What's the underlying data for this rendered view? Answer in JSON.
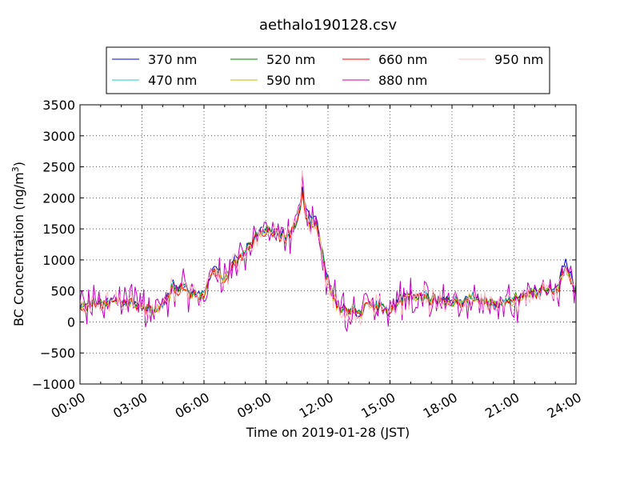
{
  "chart_data": {
    "type": "line",
    "title": "aethalo190128.csv",
    "xlabel": "Time on 2019-01-28 (JST)",
    "ylabel_main": "BC Concentration (ng/m",
    "ylabel_sup": "3",
    "ylabel_tail": ")",
    "xlim": [
      0,
      24
    ],
    "ylim": [
      -1000,
      3500
    ],
    "x_ticks": [
      0,
      3,
      6,
      9,
      12,
      15,
      18,
      21,
      24
    ],
    "x_tick_labels": [
      "00:00",
      "03:00",
      "06:00",
      "09:00",
      "12:00",
      "15:00",
      "18:00",
      "21:00",
      "24:00"
    ],
    "y_ticks": [
      -1000,
      -500,
      0,
      500,
      1000,
      1500,
      2000,
      2500,
      3000,
      3500
    ],
    "y_tick_labels": [
      "−1000",
      "−500",
      "0",
      "500",
      "1000",
      "1500",
      "2000",
      "2500",
      "3000",
      "3500"
    ],
    "grid": true,
    "legend_position": "top-center",
    "legend_columns": 4,
    "anchor_x": [
      0,
      0.5,
      1,
      1.5,
      2,
      2.5,
      3,
      3.5,
      4,
      4.5,
      5,
      5.5,
      6,
      6.5,
      7,
      7.5,
      8,
      8.5,
      9,
      9.5,
      10,
      10.5,
      10.75,
      11,
      11.5,
      12,
      12.5,
      13,
      13.5,
      14,
      14.5,
      15,
      15.5,
      16,
      16.5,
      17,
      17.5,
      18,
      18.5,
      19,
      19.5,
      20,
      20.5,
      21,
      21.5,
      22,
      22.5,
      23,
      23.5,
      24
    ],
    "series": [
      {
        "name": "370 nm",
        "color": "#0000cc",
        "noise": 60,
        "values": [
          200,
          320,
          300,
          330,
          310,
          280,
          260,
          220,
          260,
          600,
          550,
          420,
          500,
          900,
          700,
          1000,
          1150,
          1400,
          1500,
          1450,
          1400,
          1600,
          2150,
          1750,
          1600,
          700,
          200,
          200,
          150,
          300,
          280,
          200,
          350,
          450,
          420,
          380,
          360,
          350,
          350,
          400,
          350,
          320,
          300,
          380,
          450,
          520,
          560,
          500,
          1000,
          450
        ]
      },
      {
        "name": "470 nm",
        "color": "#1ad1b8",
        "noise": 60,
        "values": [
          190,
          310,
          290,
          320,
          300,
          270,
          250,
          215,
          255,
          580,
          540,
          410,
          490,
          880,
          690,
          980,
          1130,
          1380,
          1480,
          1430,
          1390,
          1580,
          2100,
          1650,
          1550,
          680,
          200,
          190,
          150,
          290,
          270,
          195,
          340,
          440,
          410,
          370,
          350,
          345,
          345,
          390,
          340,
          315,
          295,
          370,
          440,
          510,
          550,
          480,
          900,
          440
        ]
      },
      {
        "name": "520 nm",
        "color": "#008000",
        "noise": 65,
        "values": [
          190,
          300,
          290,
          310,
          300,
          270,
          250,
          215,
          250,
          570,
          530,
          400,
          480,
          870,
          680,
          970,
          1120,
          1370,
          1470,
          1420,
          1380,
          1560,
          2080,
          1600,
          1520,
          670,
          200,
          190,
          150,
          290,
          265,
          190,
          335,
          435,
          405,
          365,
          345,
          340,
          340,
          385,
          335,
          310,
          290,
          365,
          435,
          505,
          545,
          470,
          880,
          440
        ]
      },
      {
        "name": "590 nm",
        "color": "#bfbf00",
        "noise": 70,
        "values": [
          185,
          300,
          285,
          310,
          295,
          265,
          245,
          210,
          250,
          560,
          520,
          395,
          475,
          860,
          670,
          960,
          1110,
          1360,
          1460,
          1410,
          1370,
          1550,
          2060,
          1580,
          1500,
          660,
          195,
          185,
          145,
          285,
          260,
          185,
          330,
          430,
          400,
          360,
          340,
          335,
          335,
          380,
          330,
          305,
          285,
          360,
          430,
          500,
          540,
          465,
          860,
          435
        ]
      },
      {
        "name": "660 nm",
        "color": "#ff0000",
        "noise": 75,
        "values": [
          185,
          295,
          285,
          305,
          295,
          265,
          245,
          210,
          245,
          560,
          515,
          390,
          470,
          855,
          665,
          955,
          1105,
          1355,
          1455,
          1405,
          1365,
          1545,
          2050,
          1570,
          1490,
          655,
          195,
          185,
          145,
          285,
          260,
          185,
          330,
          425,
          395,
          355,
          335,
          330,
          330,
          375,
          325,
          300,
          280,
          355,
          425,
          495,
          535,
          460,
          850,
          430
        ]
      },
      {
        "name": "880 nm",
        "color": "#bf00bf",
        "noise": 230,
        "values": [
          180,
          290,
          280,
          300,
          290,
          260,
          240,
          205,
          240,
          560,
          510,
          385,
          465,
          850,
          660,
          950,
          1100,
          1350,
          1450,
          1400,
          1360,
          1540,
          2400,
          1560,
          1480,
          650,
          190,
          180,
          140,
          280,
          255,
          180,
          325,
          420,
          390,
          350,
          330,
          325,
          325,
          370,
          320,
          295,
          275,
          350,
          420,
          490,
          530,
          455,
          840,
          425
        ]
      },
      {
        "name": "950 nm",
        "color": "#ffbfbf",
        "noise": 140,
        "values": [
          180,
          290,
          280,
          300,
          290,
          260,
          240,
          205,
          240,
          560,
          510,
          385,
          465,
          850,
          660,
          950,
          1100,
          1350,
          1450,
          1400,
          1360,
          1540,
          2300,
          1560,
          1480,
          650,
          190,
          180,
          140,
          280,
          255,
          180,
          325,
          420,
          390,
          350,
          330,
          325,
          325,
          370,
          320,
          295,
          275,
          350,
          420,
          490,
          530,
          455,
          840,
          425
        ]
      }
    ]
  }
}
